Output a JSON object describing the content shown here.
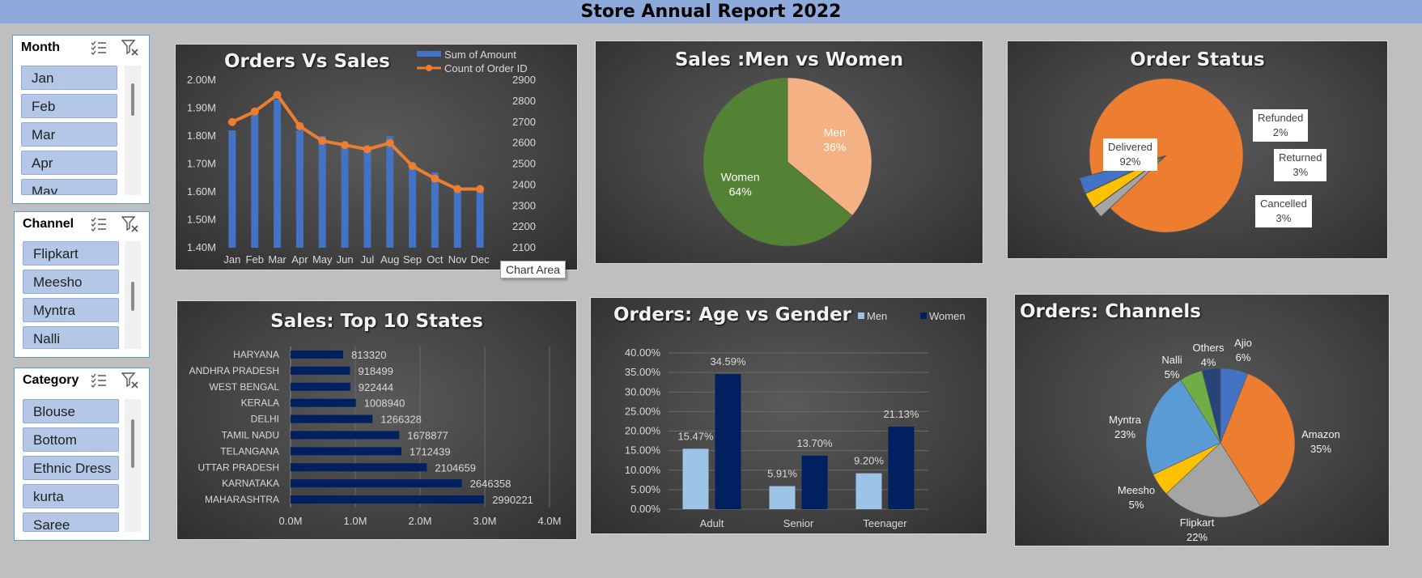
{
  "header": {
    "title": "Store Annual Report 2022"
  },
  "slicers": {
    "month": {
      "title": "Month",
      "items": [
        "Jan",
        "Feb",
        "Mar",
        "Apr",
        "May"
      ]
    },
    "channel": {
      "title": "Channel",
      "items": [
        "Flipkart",
        "Meesho",
        "Myntra",
        "Nalli"
      ]
    },
    "category": {
      "title": "Category",
      "items": [
        "Blouse",
        "Bottom",
        "Ethnic Dress",
        "kurta",
        "Saree"
      ]
    }
  },
  "tooltip": "Chart Area",
  "colors": {
    "bar_blue": "#4472c4",
    "line_orange": "#ed7d31",
    "green": "#548235",
    "peach": "#f4b183",
    "navy": "#002060",
    "light_blue": "#9dc3e6"
  },
  "chart_data": [
    {
      "id": "orders-vs-sales",
      "type": "bar-line",
      "title": "Orders Vs Sales",
      "categories": [
        "Jan",
        "Feb",
        "Mar",
        "Apr",
        "May",
        "Jun",
        "Jul",
        "Aug",
        "Sep",
        "Oct",
        "Nov",
        "Dec"
      ],
      "series": [
        {
          "name": "Sum of Amount",
          "type": "bar",
          "axis": "left",
          "values": [
            1.82,
            1.88,
            1.93,
            1.82,
            1.8,
            1.76,
            1.76,
            1.8,
            1.69,
            1.67,
            1.6,
            1.61
          ]
        },
        {
          "name": "Count of Order ID",
          "type": "line",
          "axis": "right",
          "values": [
            2700,
            2750,
            2830,
            2680,
            2610,
            2590,
            2570,
            2600,
            2490,
            2430,
            2380,
            2380
          ]
        }
      ],
      "y_left": {
        "ylim": [
          1.4,
          2.0
        ],
        "ticks": [
          "1.40M",
          "1.50M",
          "1.60M",
          "1.70M",
          "1.80M",
          "1.90M",
          "2.00M"
        ]
      },
      "y_right": {
        "ylim": [
          2100,
          2900
        ],
        "ticks": [
          "2100",
          "2200",
          "2300",
          "2400",
          "2500",
          "2600",
          "2700",
          "2800",
          "2900"
        ]
      },
      "legend": "top-right"
    },
    {
      "id": "men-vs-women",
      "type": "pie",
      "title": "Sales :Men vs Women",
      "slices": [
        {
          "label": "Men",
          "value": 36,
          "text": "36%"
        },
        {
          "label": "Women",
          "value": 64,
          "text": "64%"
        }
      ]
    },
    {
      "id": "order-status",
      "type": "pie",
      "title": "Order Status",
      "slices": [
        {
          "label": "Delivered",
          "value": 92,
          "text": "92%"
        },
        {
          "label": "Refunded",
          "value": 2,
          "text": "2%"
        },
        {
          "label": "Returned",
          "value": 3,
          "text": "3%"
        },
        {
          "label": "Cancelled",
          "value": 3,
          "text": "3%"
        }
      ]
    },
    {
      "id": "top-states",
      "type": "bar",
      "orientation": "horizontal",
      "title": "Sales: Top 10 States",
      "categories": [
        "HARYANA",
        "ANDHRA PRADESH",
        "WEST BENGAL",
        "KERALA",
        "DELHI",
        "TAMIL NADU",
        "TELANGANA",
        "UTTAR PRADESH",
        "KARNATAKA",
        "MAHARASHTRA"
      ],
      "values": [
        813320,
        918499,
        922444,
        1008940,
        1266328,
        1678877,
        1712439,
        2104659,
        2646358,
        2990221
      ],
      "labels": [
        "813320",
        "918499",
        "922444",
        "1008940",
        "1266328",
        "1678877",
        "1712439",
        "2104659",
        "2646358",
        "2990221"
      ],
      "xlim": [
        0,
        4000000
      ],
      "ticks": [
        "0.0M",
        "1.0M",
        "2.0M",
        "3.0M",
        "4.0M"
      ]
    },
    {
      "id": "age-vs-gender",
      "type": "bar",
      "title": "Orders: Age vs Gender",
      "categories": [
        "Adult",
        "Senior",
        "Teenager"
      ],
      "series": [
        {
          "name": "Men",
          "values": [
            15.47,
            5.91,
            9.2
          ],
          "labels": [
            "15.47%",
            "5.91%",
            "9.20%"
          ]
        },
        {
          "name": "Women",
          "values": [
            34.59,
            13.7,
            21.13
          ],
          "labels": [
            "34.59%",
            "13.70%",
            "21.13%"
          ]
        }
      ],
      "ylim": [
        0,
        40
      ],
      "ticks": [
        "0.00%",
        "5.00%",
        "10.00%",
        "15.00%",
        "20.00%",
        "25.00%",
        "30.00%",
        "35.00%",
        "40.00%"
      ],
      "legend": "top-right"
    },
    {
      "id": "channels",
      "type": "pie",
      "title": "Orders: Channels",
      "slices": [
        {
          "label": "Ajio",
          "value": 6,
          "text": "6%"
        },
        {
          "label": "Amazon",
          "value": 35,
          "text": "35%"
        },
        {
          "label": "Flipkart",
          "value": 22,
          "text": "22%"
        },
        {
          "label": "Meesho",
          "value": 5,
          "text": "5%"
        },
        {
          "label": "Myntra",
          "value": 23,
          "text": "23%"
        },
        {
          "label": "Nalli",
          "value": 5,
          "text": "5%"
        },
        {
          "label": "Others",
          "value": 4,
          "text": "4%"
        }
      ]
    }
  ]
}
